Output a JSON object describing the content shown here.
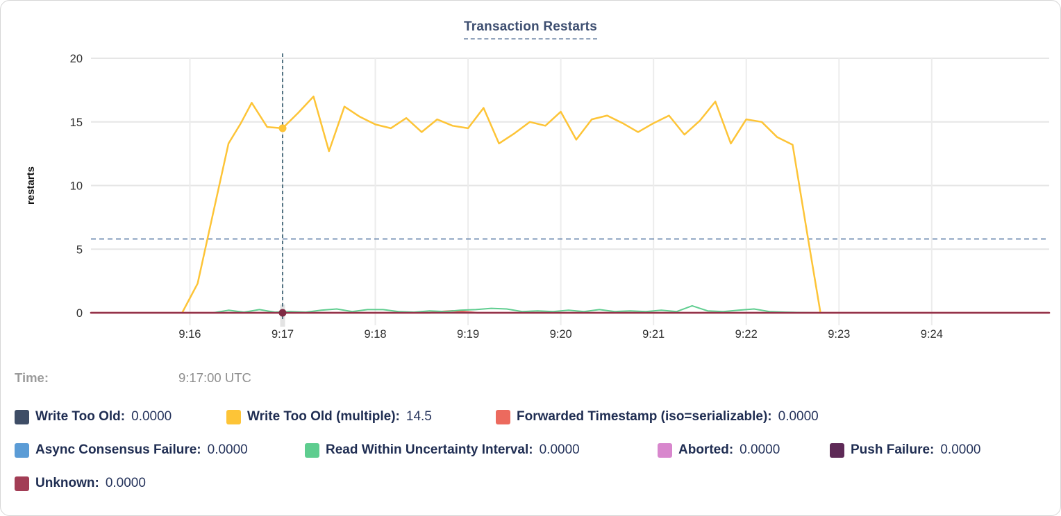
{
  "hover_readout": {
    "time_label": "Time:",
    "time_value": "9:17:00 UTC"
  },
  "legend": {
    "rows": [
      {
        "items": [
          {
            "label": "Write Too Old:",
            "value": "0.0000",
            "color": "#3e4d66"
          },
          {
            "label": "Write Too Old (multiple):",
            "value": "14.5",
            "color": "#fdc437"
          },
          {
            "label": "Forwarded Timestamp (iso=serializable):",
            "value": "0.0000",
            "color": "#ec6a5e"
          }
        ]
      },
      {
        "items": [
          {
            "label": "Async Consensus Failure:",
            "value": "0.0000",
            "color": "#5b9cd6"
          },
          {
            "label": "Read Within Uncertainty Interval:",
            "value": "0.0000",
            "color": "#5ecd8f"
          },
          {
            "label": "Aborted:",
            "value": "0.0000",
            "color": "#d887cd"
          },
          {
            "label": "Push Failure:",
            "value": "0.0000",
            "color": "#5e2a57"
          }
        ]
      },
      {
        "items": [
          {
            "label": "Unknown:",
            "value": "0.0000",
            "color": "#a23d55"
          }
        ]
      }
    ]
  },
  "chart_data": {
    "type": "line",
    "title": "Transaction Restarts",
    "ylabel": "restarts",
    "ylim": [
      0,
      20
    ],
    "yticks": [
      0,
      5,
      10,
      15,
      20
    ],
    "x_domain_sec": [
      -64,
      556
    ],
    "xticks": [
      {
        "label": "9:16",
        "t": 0
      },
      {
        "label": "9:17",
        "t": 60
      },
      {
        "label": "9:18",
        "t": 120
      },
      {
        "label": "9:19",
        "t": 180
      },
      {
        "label": "9:20",
        "t": 240
      },
      {
        "label": "9:21",
        "t": 300
      },
      {
        "label": "9:22",
        "t": 360
      },
      {
        "label": "9:23",
        "t": 420
      },
      {
        "label": "9:24",
        "t": 480
      }
    ],
    "grid": true,
    "average_line": {
      "value": 5.8,
      "color": "#5f7fa8"
    },
    "crosshair": {
      "t": 60,
      "time": "9:17:00 UTC",
      "color": "#2e566b"
    },
    "hover_dots": [
      {
        "series": "Write Too Old (multiple)",
        "t": 60,
        "value": 14.5,
        "color": "#fdc437"
      },
      {
        "series": "Unknown",
        "t": 60,
        "value": 0,
        "color": "#7e2b43"
      }
    ],
    "series": [
      {
        "name": "Write Too Old",
        "color": "#3e4d66",
        "stroke_width": 2,
        "points": [
          [
            -64,
            0
          ],
          [
            556,
            0
          ]
        ]
      },
      {
        "name": "Async Consensus Failure",
        "color": "#5b9cd6",
        "stroke_width": 2,
        "points": [
          [
            -64,
            0
          ],
          [
            556,
            0
          ]
        ]
      },
      {
        "name": "Aborted",
        "color": "#d887cd",
        "stroke_width": 2,
        "points": [
          [
            -64,
            0
          ],
          [
            556,
            0
          ]
        ]
      },
      {
        "name": "Push Failure",
        "color": "#5e2a57",
        "stroke_width": 2,
        "points": [
          [
            -64,
            0
          ],
          [
            556,
            0
          ]
        ]
      },
      {
        "name": "Forwarded Timestamp (iso=serializable)",
        "color": "#ec6a5e",
        "stroke_width": 2.5,
        "points": [
          [
            -64,
            0
          ],
          [
            155,
            0
          ],
          [
            163,
            0.1
          ],
          [
            170,
            0.15
          ],
          [
            178,
            0.08
          ],
          [
            186,
            0
          ],
          [
            556,
            0
          ]
        ]
      },
      {
        "name": "Write Too Old (multiple)",
        "color": "#fdc437",
        "stroke_width": 2.5,
        "points": [
          [
            -5,
            0
          ],
          [
            5,
            2.3
          ],
          [
            15,
            7.8
          ],
          [
            25,
            13.3
          ],
          [
            33,
            14.9
          ],
          [
            40,
            16.5
          ],
          [
            50,
            14.6
          ],
          [
            60,
            14.5
          ],
          [
            70,
            15.7
          ],
          [
            80,
            17.0
          ],
          [
            90,
            12.7
          ],
          [
            100,
            16.2
          ],
          [
            110,
            15.4
          ],
          [
            120,
            14.8
          ],
          [
            130,
            14.5
          ],
          [
            140,
            15.3
          ],
          [
            150,
            14.2
          ],
          [
            160,
            15.2
          ],
          [
            170,
            14.7
          ],
          [
            180,
            14.5
          ],
          [
            190,
            16.1
          ],
          [
            200,
            13.3
          ],
          [
            210,
            14.1
          ],
          [
            220,
            15.0
          ],
          [
            230,
            14.7
          ],
          [
            240,
            15.8
          ],
          [
            250,
            13.6
          ],
          [
            260,
            15.2
          ],
          [
            270,
            15.5
          ],
          [
            280,
            14.9
          ],
          [
            290,
            14.2
          ],
          [
            300,
            14.9
          ],
          [
            310,
            15.5
          ],
          [
            320,
            14.0
          ],
          [
            330,
            15.1
          ],
          [
            340,
            16.6
          ],
          [
            350,
            13.3
          ],
          [
            360,
            15.2
          ],
          [
            370,
            15.0
          ],
          [
            380,
            13.8
          ],
          [
            390,
            13.2
          ],
          [
            400,
            5.8
          ],
          [
            408,
            0
          ]
        ]
      },
      {
        "name": "Read Within Uncertainty Interval",
        "color": "#5ecd8f",
        "stroke_width": 2,
        "points": [
          [
            15,
            0
          ],
          [
            25,
            0.2
          ],
          [
            35,
            0.05
          ],
          [
            45,
            0.25
          ],
          [
            55,
            0.05
          ],
          [
            65,
            0.1
          ],
          [
            75,
            0.05
          ],
          [
            85,
            0.2
          ],
          [
            95,
            0.3
          ],
          [
            105,
            0.1
          ],
          [
            115,
            0.25
          ],
          [
            125,
            0.25
          ],
          [
            135,
            0.1
          ],
          [
            145,
            0.05
          ],
          [
            155,
            0.15
          ],
          [
            165,
            0.1
          ],
          [
            175,
            0.2
          ],
          [
            185,
            0.25
          ],
          [
            195,
            0.35
          ],
          [
            205,
            0.3
          ],
          [
            215,
            0.1
          ],
          [
            225,
            0.15
          ],
          [
            235,
            0.1
          ],
          [
            245,
            0.2
          ],
          [
            255,
            0.1
          ],
          [
            265,
            0.25
          ],
          [
            275,
            0.1
          ],
          [
            285,
            0.15
          ],
          [
            295,
            0.1
          ],
          [
            305,
            0.2
          ],
          [
            315,
            0.1
          ],
          [
            325,
            0.55
          ],
          [
            335,
            0.15
          ],
          [
            345,
            0.1
          ],
          [
            355,
            0.2
          ],
          [
            365,
            0.3
          ],
          [
            375,
            0.1
          ],
          [
            385,
            0.05
          ],
          [
            395,
            0.02
          ],
          [
            405,
            0
          ]
        ]
      },
      {
        "name": "Unknown",
        "color": "#93334a",
        "stroke_width": 2.5,
        "points": [
          [
            -64,
            0
          ],
          [
            556,
            0
          ]
        ]
      }
    ]
  }
}
